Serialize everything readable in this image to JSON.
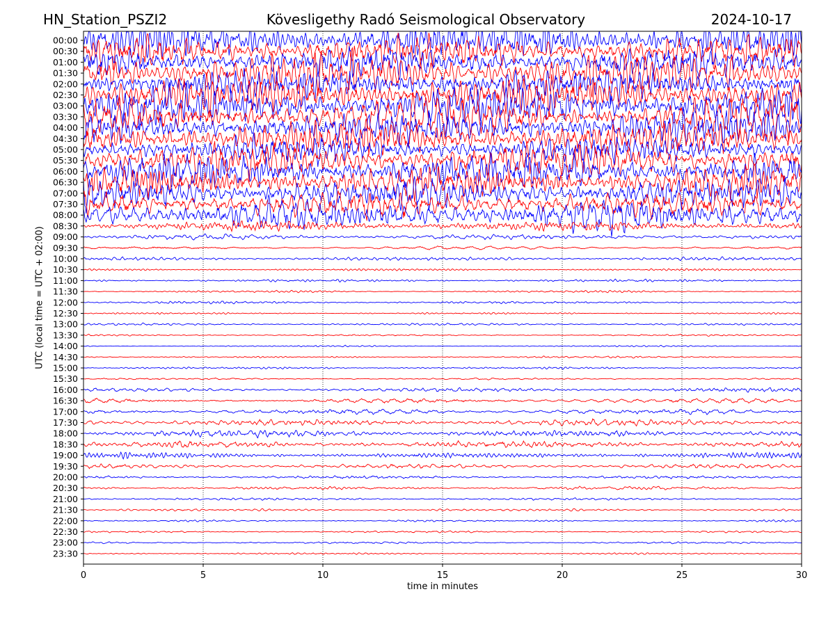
{
  "header": {
    "station": "HN_Station_PSZI2",
    "observatory": "Kövesligethy Radó Seismological Observatory",
    "date": "2024-10-17"
  },
  "chart_data": {
    "type": "line",
    "title": "Kövesligethy Radó Seismological Observatory",
    "xlabel": "time in minutes",
    "ylabel": "UTC (local time = UTC + 02:00)",
    "xlim": [
      0,
      30
    ],
    "xticks": [
      "0",
      "5",
      "10",
      "15",
      "20",
      "25",
      "30"
    ],
    "xtick_values": [
      0,
      5,
      10,
      15,
      20,
      25,
      30
    ],
    "grid": "vertical dotted lines at x = 5, 10, 15, 20, 25",
    "series_colors": [
      "#0000ff",
      "#ff0000"
    ],
    "rows": [
      {
        "label": "00:00",
        "amplitude": 0.95
      },
      {
        "label": "00:30",
        "amplitude": 0.9
      },
      {
        "label": "01:00",
        "amplitude": 1.0
      },
      {
        "label": "01:30",
        "amplitude": 1.0
      },
      {
        "label": "02:00",
        "amplitude": 1.0
      },
      {
        "label": "02:30",
        "amplitude": 1.0
      },
      {
        "label": "03:00",
        "amplitude": 1.0
      },
      {
        "label": "03:30",
        "amplitude": 1.0
      },
      {
        "label": "04:00",
        "amplitude": 1.0
      },
      {
        "label": "04:30",
        "amplitude": 1.0
      },
      {
        "label": "05:00",
        "amplitude": 1.0
      },
      {
        "label": "05:30",
        "amplitude": 1.0
      },
      {
        "label": "06:00",
        "amplitude": 1.0
      },
      {
        "label": "06:30",
        "amplitude": 0.95
      },
      {
        "label": "07:00",
        "amplitude": 0.9
      },
      {
        "label": "07:30",
        "amplitude": 0.9
      },
      {
        "label": "08:00",
        "amplitude": 0.85
      },
      {
        "label": "08:30",
        "amplitude": 0.25
      },
      {
        "label": "09:00",
        "amplitude": 0.12
      },
      {
        "label": "09:30",
        "amplitude": 0.1
      },
      {
        "label": "10:00",
        "amplitude": 0.1
      },
      {
        "label": "10:30",
        "amplitude": 0.07
      },
      {
        "label": "11:00",
        "amplitude": 0.07
      },
      {
        "label": "11:30",
        "amplitude": 0.05
      },
      {
        "label": "12:00",
        "amplitude": 0.07
      },
      {
        "label": "12:30",
        "amplitude": 0.05
      },
      {
        "label": "13:00",
        "amplitude": 0.06
      },
      {
        "label": "13:30",
        "amplitude": 0.05
      },
      {
        "label": "14:00",
        "amplitude": 0.04
      },
      {
        "label": "14:30",
        "amplitude": 0.05
      },
      {
        "label": "15:00",
        "amplitude": 0.05
      },
      {
        "label": "15:30",
        "amplitude": 0.06
      },
      {
        "label": "16:00",
        "amplitude": 0.1
      },
      {
        "label": "16:30",
        "amplitude": 0.13
      },
      {
        "label": "17:00",
        "amplitude": 0.14
      },
      {
        "label": "17:30",
        "amplitude": 0.16
      },
      {
        "label": "18:00",
        "amplitude": 0.2
      },
      {
        "label": "18:30",
        "amplitude": 0.2
      },
      {
        "label": "19:00",
        "amplitude": 0.18
      },
      {
        "label": "19:30",
        "amplitude": 0.13
      },
      {
        "label": "20:00",
        "amplitude": 0.1
      },
      {
        "label": "20:30",
        "amplitude": 0.08
      },
      {
        "label": "21:00",
        "amplitude": 0.06
      },
      {
        "label": "21:30",
        "amplitude": 0.06
      },
      {
        "label": "22:00",
        "amplitude": 0.05
      },
      {
        "label": "22:30",
        "amplitude": 0.05
      },
      {
        "label": "23:00",
        "amplitude": 0.05
      },
      {
        "label": "23:30",
        "amplitude": 0.05
      }
    ]
  }
}
